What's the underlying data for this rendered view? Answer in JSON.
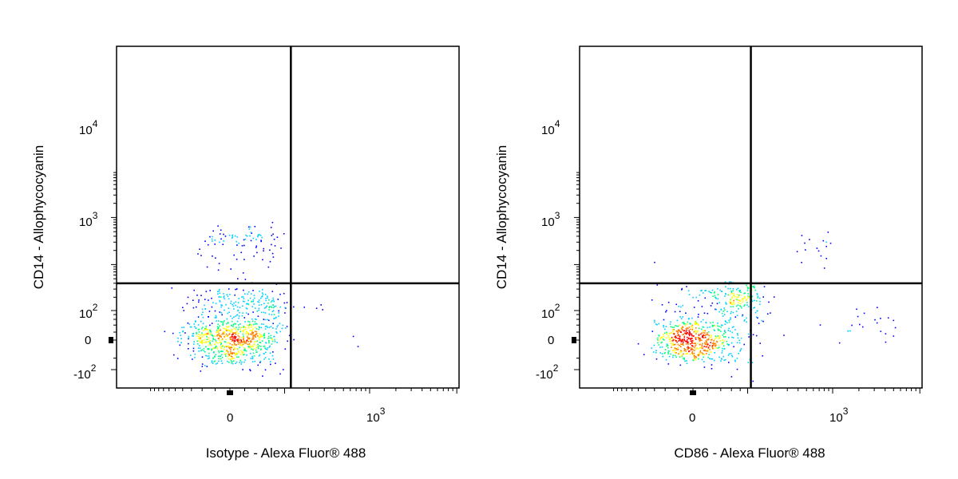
{
  "chart_data": [
    {
      "type": "scatter",
      "subtype": "flow-cytometry-density-dot-plot",
      "xlabel": "Isotype - Alexa Fluor® 488",
      "ylabel": "CD14 - Allophycocyanin",
      "x_scale": "biexponential",
      "y_scale": "biexponential",
      "x_ticks": [
        {
          "base": "0",
          "exp": ""
        },
        {
          "base": "10",
          "exp": "3"
        }
      ],
      "y_ticks": [
        {
          "base": "10",
          "exp": "4"
        },
        {
          "base": "10",
          "exp": "3"
        },
        {
          "base": "10",
          "exp": "2"
        },
        {
          "base": "0",
          "exp": ""
        },
        {
          "base": "-10",
          "exp": "2"
        }
      ],
      "gate": {
        "x": 120,
        "y": 400
      },
      "colors": [
        "#0000ff",
        "#00d0ff",
        "#00ff80",
        "#ffff00",
        "#ff8000",
        "#ff0000"
      ],
      "populations": [
        {
          "cx": 0,
          "cy": 0,
          "sx": 35,
          "sy": 32,
          "n": 650
        },
        {
          "cx": 20,
          "cy": 120,
          "sx": 40,
          "sy": 100,
          "n": 260
        },
        {
          "cx": 20,
          "cy": 3000,
          "sx": 35,
          "sy": 1800,
          "n": 95
        },
        {
          "cx": 400,
          "cy": 80,
          "sx": 300,
          "sy": 60,
          "n": 6
        }
      ]
    },
    {
      "type": "scatter",
      "subtype": "flow-cytometry-density-dot-plot",
      "xlabel": "CD86 - Alexa Fluor® 488",
      "ylabel": "CD14 - Allophycocyanin",
      "x_scale": "biexponential",
      "y_scale": "biexponential",
      "x_ticks": [
        {
          "base": "0",
          "exp": ""
        },
        {
          "base": "10",
          "exp": "3"
        }
      ],
      "y_ticks": [
        {
          "base": "10",
          "exp": "4"
        },
        {
          "base": "10",
          "exp": "3"
        },
        {
          "base": "10",
          "exp": "2"
        },
        {
          "base": "0",
          "exp": ""
        },
        {
          "base": "-10",
          "exp": "2"
        }
      ],
      "gate": {
        "x": 110,
        "y": 400
      },
      "colors": [
        "#0000ff",
        "#00d0ff",
        "#00ff80",
        "#ffff00",
        "#ff8000",
        "#ff0000"
      ],
      "populations": [
        {
          "cx": 0,
          "cy": 0,
          "sx": 30,
          "sy": 28,
          "n": 550
        },
        {
          "cx": 60,
          "cy": 150,
          "sx": 45,
          "sy": 110,
          "n": 260
        },
        {
          "cx": 600,
          "cy": 2700,
          "sx": 300,
          "sy": 900,
          "n": 18
        },
        {
          "cx": 1800,
          "cy": 50,
          "sx": 1800,
          "sy": 40,
          "n": 28
        }
      ]
    }
  ]
}
